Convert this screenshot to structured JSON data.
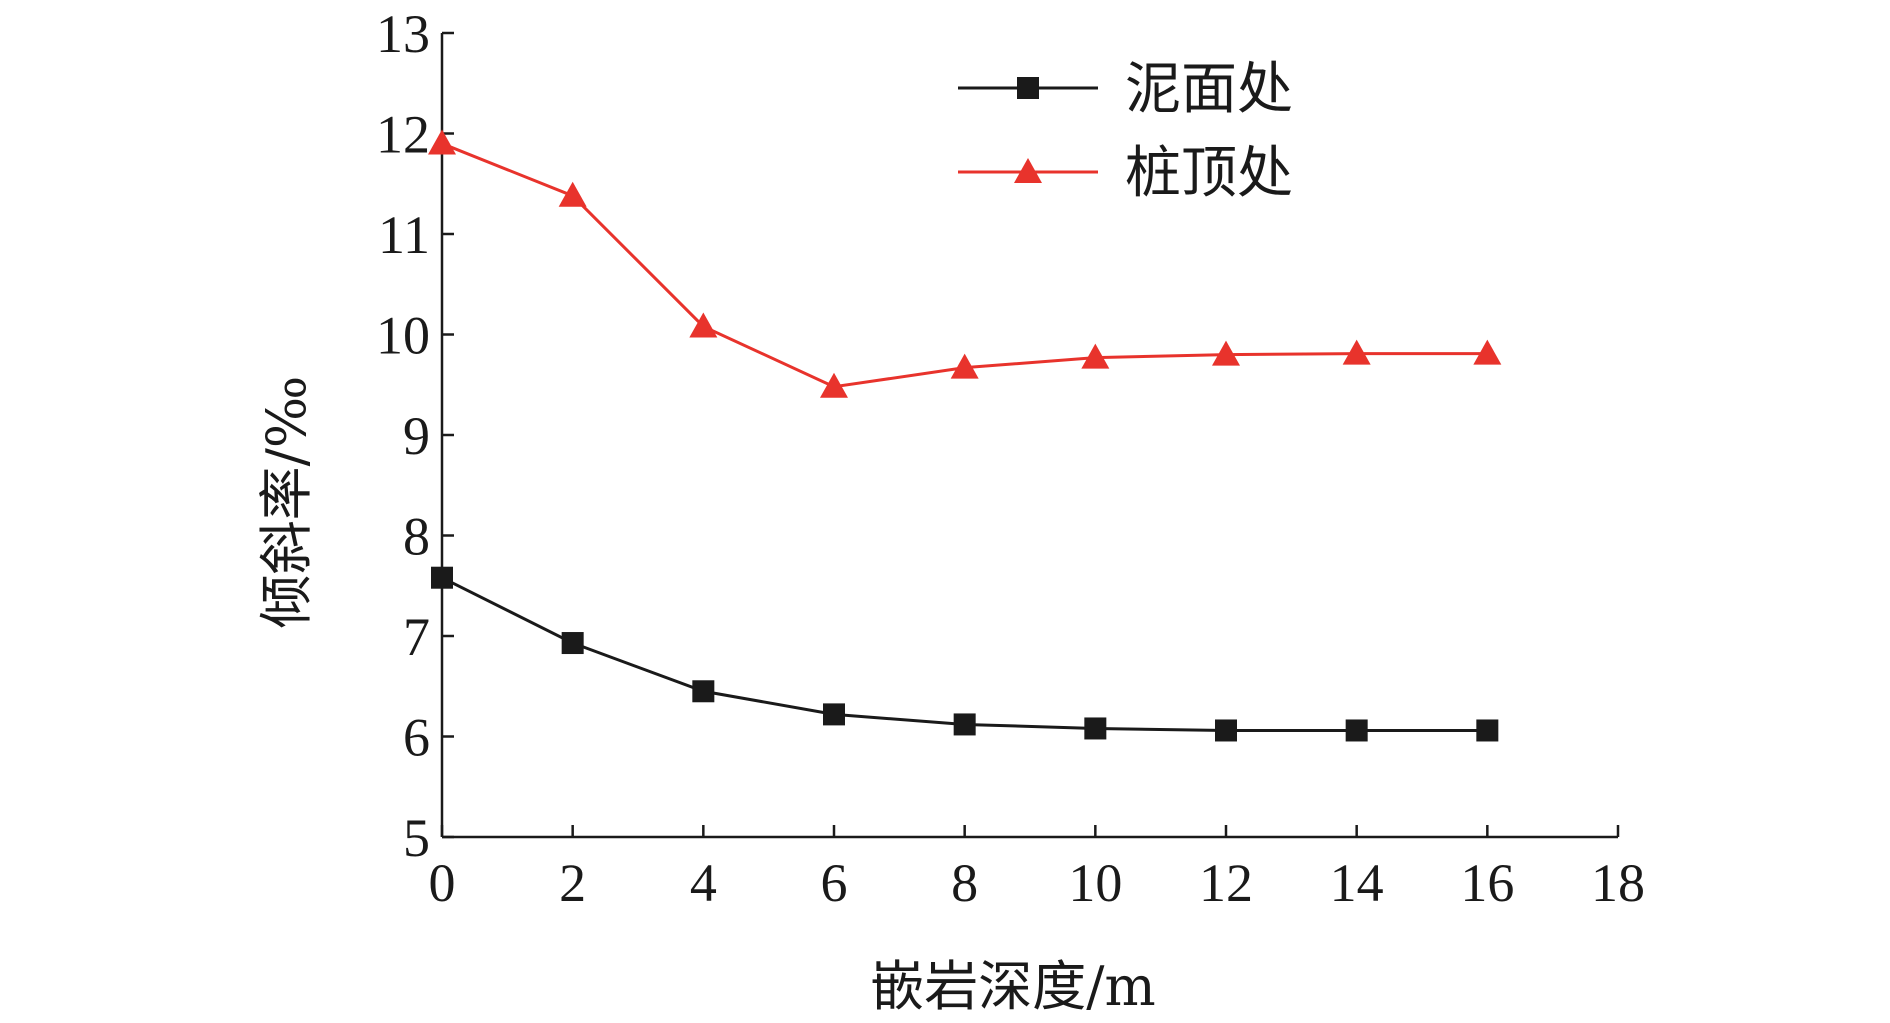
{
  "chart_data": {
    "type": "line",
    "title": "",
    "xlabel": "嵌岩深度/m",
    "ylabel": "倾斜率/‰",
    "xlim": [
      0,
      18
    ],
    "ylim": [
      5,
      13
    ],
    "xticks": [
      0,
      2,
      4,
      6,
      8,
      10,
      12,
      14,
      16,
      18
    ],
    "yticks": [
      5,
      6,
      7,
      8,
      9,
      10,
      11,
      12,
      13
    ],
    "grid": false,
    "legend_position": "top-right",
    "x": [
      0,
      2,
      4,
      6,
      8,
      10,
      12,
      14,
      16
    ],
    "series": [
      {
        "name": "泥面处",
        "values": [
          7.58,
          6.93,
          6.45,
          6.22,
          6.12,
          6.08,
          6.06,
          6.06,
          6.06
        ],
        "color": "#1a1a1a",
        "marker": "square"
      },
      {
        "name": "桩顶处",
        "values": [
          11.9,
          11.38,
          10.08,
          9.48,
          9.67,
          9.77,
          9.8,
          9.81,
          9.81
        ],
        "color": "#e8332c",
        "marker": "triangle"
      }
    ]
  }
}
